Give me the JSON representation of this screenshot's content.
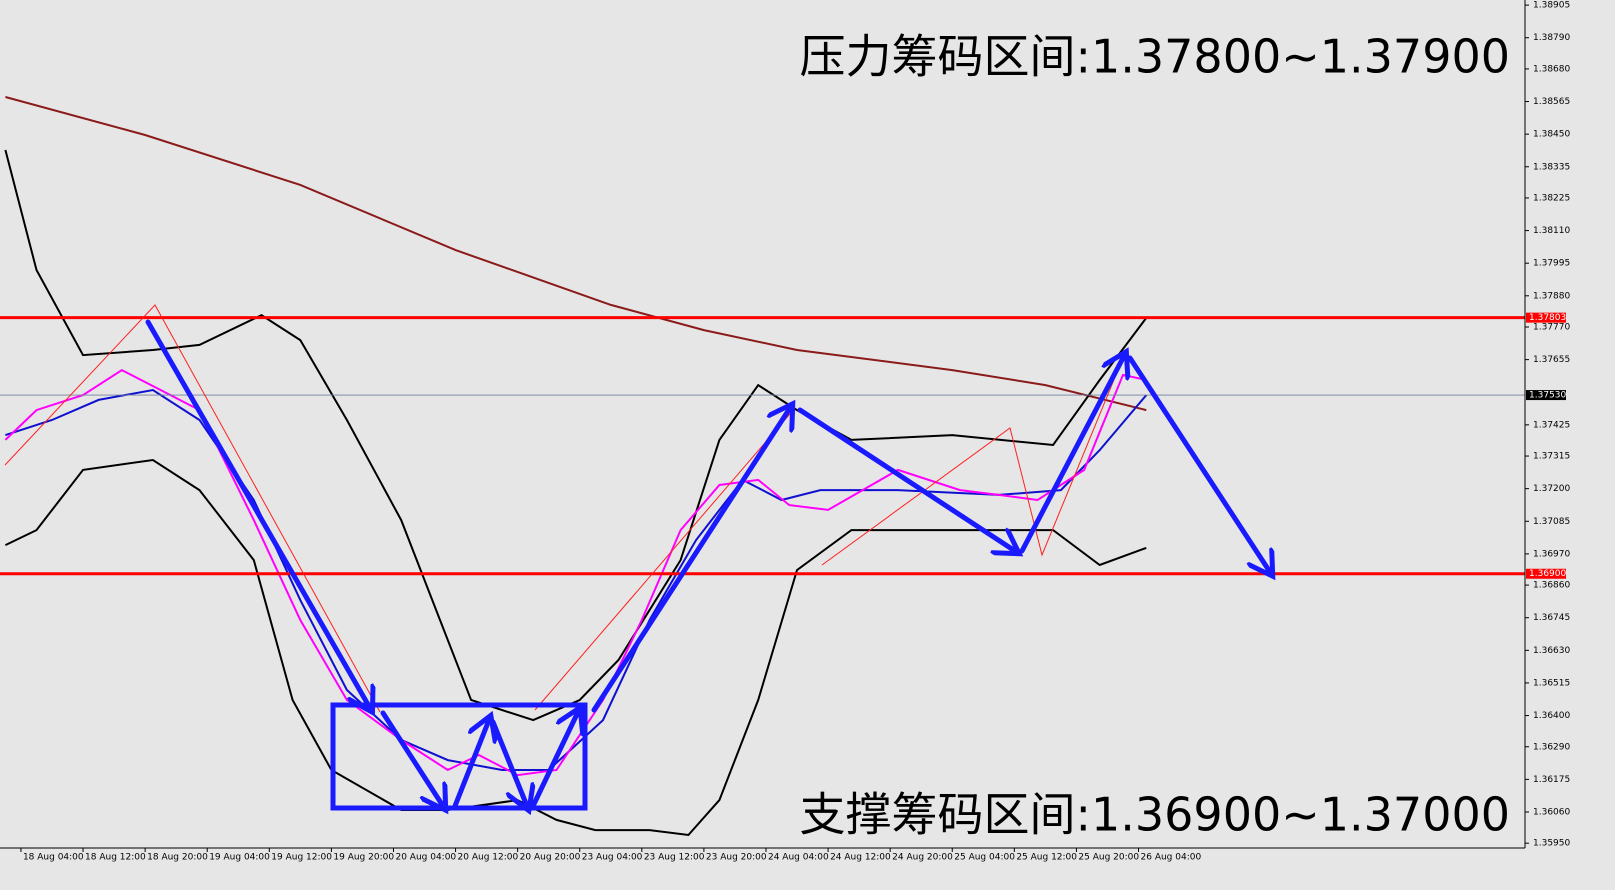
{
  "chart_data": {
    "type": "line",
    "annotations": [
      "压力筹码区间:1.37800~1.37900",
      "支撑筹码区间:1.36900~1.37000"
    ],
    "xlim": [
      -2.7,
      193.8
    ],
    "xticks": [
      {
        "value": 0,
        "label": "18 Aug 04:00"
      },
      {
        "value": 8,
        "label": "18 Aug 12:00"
      },
      {
        "value": 16,
        "label": "18 Aug 20:00"
      },
      {
        "value": 24,
        "label": "19 Aug 04:00"
      },
      {
        "value": 32,
        "label": "19 Aug 12:00"
      },
      {
        "value": 40,
        "label": "19 Aug 20:00"
      },
      {
        "value": 48,
        "label": "20 Aug 04:00"
      },
      {
        "value": 56,
        "label": "20 Aug 12:00"
      },
      {
        "value": 64,
        "label": "20 Aug 20:00"
      },
      {
        "value": 72,
        "label": "23 Aug 04:00"
      },
      {
        "value": 80,
        "label": "23 Aug 12:00"
      },
      {
        "value": 88,
        "label": "23 Aug 20:00"
      },
      {
        "value": 96,
        "label": "24 Aug 04:00"
      },
      {
        "value": 104,
        "label": "24 Aug 12:00"
      },
      {
        "value": 112,
        "label": "24 Aug 20:00"
      },
      {
        "value": 120,
        "label": "25 Aug 04:00"
      },
      {
        "value": 128,
        "label": "25 Aug 12:00"
      },
      {
        "value": 136,
        "label": "25 Aug 20:00"
      },
      {
        "value": 144,
        "label": "26 Aug 04:00"
      }
    ],
    "ylim": [
      1.35933,
      1.38923
    ],
    "yticks": [
      1.38905,
      {
        "value": 1.3879,
        "label": "1.38790"
      },
      {
        "value": 1.3868,
        "label": "1.38680"
      },
      1.38565,
      {
        "value": 1.3845,
        "label": "1.38450"
      },
      1.38335,
      1.38225,
      {
        "value": 1.3811,
        "label": "1.38110"
      },
      1.37995,
      {
        "value": 1.3788,
        "label": "1.37880"
      },
      {
        "value": 1.3777,
        "label": "1.37770"
      },
      1.37655,
      1.37425,
      1.37315,
      {
        "value": 1.372,
        "label": "1.37200"
      },
      1.37085,
      {
        "value": 1.3697,
        "label": "1.36970"
      },
      {
        "value": 1.3686,
        "label": "1.36860"
      },
      1.36745,
      {
        "value": 1.3663,
        "label": "1.36630"
      },
      1.36515,
      {
        "value": 1.364,
        "label": "1.36400"
      },
      {
        "value": 1.3629,
        "label": "1.36290"
      },
      1.36175,
      {
        "value": 1.3606,
        "label": "1.36060"
      },
      {
        "value": 1.3595,
        "label": "1.35950"
      }
    ],
    "levels": [
      {
        "value": 1.37803,
        "label": "1.37803",
        "color": "#ff0000"
      },
      {
        "value": 1.369,
        "label": "1.36900",
        "color": "#ff0000"
      },
      {
        "value": 1.3753,
        "label": "1.37530",
        "color": "#000000"
      }
    ],
    "series": [
      {
        "color": "#8b1a1a",
        "x": [
          -2,
          16,
          36,
          56,
          76,
          88,
          100,
          120,
          132,
          145
        ],
        "values": [
          1.38581,
          1.38447,
          1.38271,
          1.38041,
          1.37848,
          1.37759,
          1.37689,
          1.37618,
          1.37565,
          1.37477
        ]
      },
      {
        "color": "#000000",
        "x": [
          -2,
          2,
          8,
          17,
          23,
          31,
          36,
          42,
          49,
          54,
          58,
          66,
          72,
          77,
          85,
          90,
          95,
          100,
          107,
          120,
          133,
          139,
          145
        ],
        "values": [
          1.38394,
          1.37971,
          1.37671,
          1.37689,
          1.37707,
          1.37812,
          1.37724,
          1.37442,
          1.37089,
          1.36737,
          1.36455,
          1.36384,
          1.36455,
          1.36596,
          1.36948,
          1.37372,
          1.37565,
          1.37477,
          1.37372,
          1.37389,
          1.37354,
          1.37583,
          1.37802
        ]
      },
      {
        "color": "#000000",
        "x": [
          -2,
          2,
          8,
          17,
          23,
          30,
          35,
          40,
          49,
          55,
          64,
          69,
          74,
          81,
          86,
          90,
          95,
          100,
          107,
          120,
          133,
          139,
          145
        ],
        "values": [
          1.37001,
          1.37054,
          1.37266,
          1.37301,
          1.37195,
          1.36948,
          1.36455,
          1.36208,
          1.36067,
          1.36067,
          1.36102,
          1.36032,
          1.35996,
          1.35996,
          1.35979,
          1.36102,
          1.36455,
          1.36913,
          1.37054,
          1.37054,
          1.37054,
          1.36931,
          1.36991
        ]
      },
      {
        "color": "#1010d0",
        "x": [
          -2,
          4,
          10,
          17,
          23,
          30,
          36,
          42,
          49,
          55,
          62,
          68,
          75,
          81,
          87,
          93,
          98,
          103,
          113,
          126,
          134,
          139,
          145
        ],
        "values": [
          1.37389,
          1.37442,
          1.37513,
          1.37548,
          1.37442,
          1.3716,
          1.36807,
          1.3649,
          1.36314,
          1.36243,
          1.36208,
          1.36208,
          1.36384,
          1.36737,
          1.37019,
          1.37231,
          1.3716,
          1.37195,
          1.37195,
          1.37178,
          1.37195,
          1.37336,
          1.3753
        ]
      },
      {
        "color": "#ff00ff",
        "x": [
          -2,
          2,
          8,
          13,
          18,
          23,
          30,
          36,
          42,
          49,
          55,
          59,
          64,
          69,
          75,
          80,
          85,
          90,
          95,
          99,
          104,
          113,
          121,
          126,
          131,
          137,
          142,
          145
        ],
        "values": [
          1.37372,
          1.37477,
          1.3753,
          1.37618,
          1.37548,
          1.37477,
          1.37089,
          1.36737,
          1.36455,
          1.36314,
          1.36208,
          1.36261,
          1.3619,
          1.36208,
          1.36455,
          1.36737,
          1.37054,
          1.37213,
          1.37231,
          1.37142,
          1.37125,
          1.37266,
          1.37195,
          1.37178,
          1.3716,
          1.37266,
          1.37601,
          1.37583
        ]
      }
    ]
  }
}
